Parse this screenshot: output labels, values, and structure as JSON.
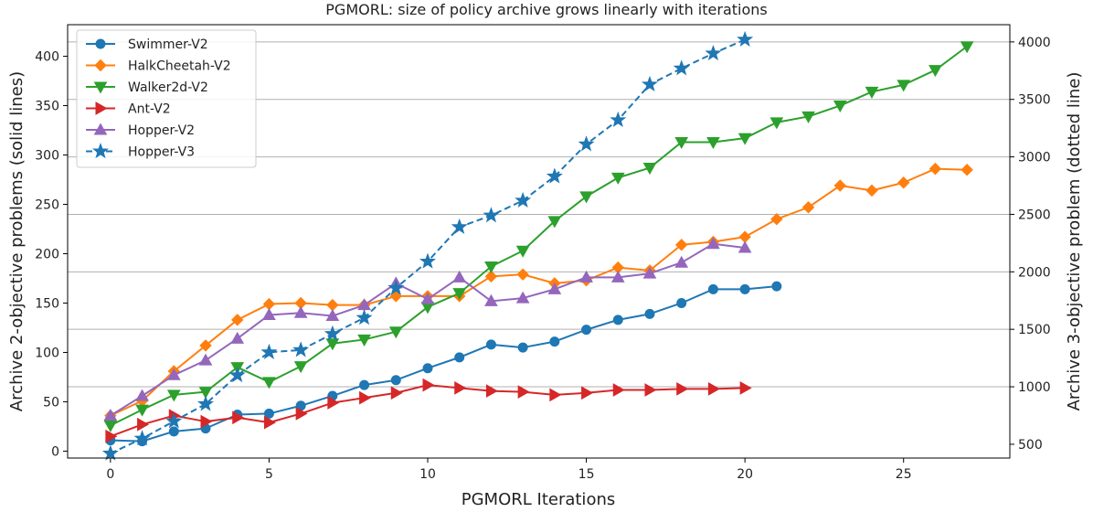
{
  "chart_data": {
    "type": "line",
    "title": "PGMORL: size of policy archive grows linearly with iterations",
    "xlabel": "PGMORL Iterations",
    "ylabel": "Archive 2-objective problems (solid lines)",
    "ylabel_right": "Archive 3-objective problem (dotted line)",
    "xlim": [
      -1.35,
      28.35
    ],
    "ylim": [
      -7,
      432
    ],
    "ylim_right": [
      380,
      4150
    ],
    "xticks": [
      0,
      5,
      10,
      15,
      20,
      25
    ],
    "yticks": [
      0,
      50,
      100,
      150,
      200,
      250,
      300,
      350,
      400
    ],
    "yticks_right": [
      500,
      1000,
      1500,
      2000,
      2500,
      3000,
      3500,
      4000
    ],
    "right_gridlines": [
      1000,
      1500,
      2000,
      2500,
      3000,
      3500,
      4000
    ],
    "legend_position": "top-left",
    "series": [
      {
        "name": "Swimmer-V2",
        "color": "#1f77b4",
        "marker": "circle",
        "axis": "left",
        "dashed": false,
        "x": [
          0,
          1,
          2,
          3,
          4,
          5,
          6,
          7,
          8,
          9,
          10,
          11,
          12,
          13,
          14,
          15,
          16,
          17,
          18,
          19,
          20,
          21
        ],
        "y": [
          11,
          10,
          20,
          23,
          37,
          38,
          46,
          56,
          67,
          72,
          84,
          95,
          108,
          105,
          111,
          123,
          133,
          139,
          150,
          164,
          164,
          167
        ]
      },
      {
        "name": "HalkCheetah-V2",
        "color": "#ff7f0e",
        "marker": "diamond",
        "axis": "left",
        "dashed": false,
        "x": [
          0,
          1,
          2,
          3,
          4,
          5,
          6,
          7,
          8,
          9,
          10,
          11,
          12,
          13,
          14,
          15,
          16,
          17,
          18,
          19,
          20,
          21,
          22,
          23,
          24,
          25,
          26,
          27
        ],
        "y": [
          36,
          51,
          81,
          107,
          133,
          149,
          150,
          148,
          148,
          157,
          157,
          157,
          177,
          179,
          170,
          173,
          186,
          183,
          209,
          212,
          217,
          235,
          247,
          269,
          264,
          272,
          286,
          285
        ]
      },
      {
        "name": "Walker2d-V2",
        "color": "#2ca02c",
        "marker": "triangle-down",
        "axis": "left",
        "dashed": false,
        "x": [
          0,
          1,
          2,
          3,
          4,
          5,
          6,
          7,
          8,
          9,
          10,
          11,
          12,
          13,
          14,
          15,
          16,
          17,
          18,
          19,
          20,
          21,
          22,
          23,
          24,
          25,
          26,
          27
        ],
        "y": [
          26,
          42,
          57,
          60,
          85,
          70,
          86,
          109,
          113,
          121,
          146,
          160,
          187,
          203,
          233,
          258,
          277,
          287,
          313,
          313,
          317,
          333,
          339,
          350,
          364,
          371,
          386,
          410
        ]
      },
      {
        "name": "Ant-V2",
        "color": "#d62728",
        "marker": "triangle-right",
        "axis": "left",
        "dashed": false,
        "x": [
          0,
          1,
          2,
          3,
          4,
          5,
          6,
          7,
          8,
          9,
          10,
          11,
          12,
          13,
          14,
          15,
          16,
          17,
          18,
          19,
          20
        ],
        "y": [
          15,
          27,
          36,
          30,
          34,
          29,
          38,
          49,
          54,
          59,
          67,
          64,
          61,
          60,
          57,
          59,
          62,
          62,
          63,
          63,
          64
        ]
      },
      {
        "name": "Hopper-V2",
        "color": "#9467bd",
        "marker": "triangle-up",
        "axis": "left",
        "dashed": false,
        "x": [
          0,
          1,
          2,
          3,
          4,
          5,
          6,
          7,
          8,
          9,
          10,
          11,
          12,
          13,
          14,
          15,
          16,
          17,
          18,
          19,
          20
        ],
        "y": [
          36,
          56,
          77,
          92,
          114,
          138,
          140,
          137,
          148,
          170,
          154,
          176,
          152,
          155,
          164,
          176,
          176,
          180,
          191,
          210,
          206
        ]
      },
      {
        "name": "Hopper-V3",
        "color": "#1f77b4",
        "marker": "star",
        "axis": "right",
        "dashed": true,
        "x": [
          0,
          1,
          2,
          3,
          4,
          5,
          6,
          7,
          8,
          9,
          10,
          11,
          12,
          13,
          14,
          15,
          16,
          17,
          18,
          19,
          20
        ],
        "y": [
          420,
          550,
          700,
          850,
          1100,
          1300,
          1320,
          1460,
          1600,
          1860,
          2090,
          2390,
          2490,
          2620,
          2830,
          3110,
          3320,
          3630,
          3770,
          3900,
          4020
        ]
      }
    ]
  }
}
